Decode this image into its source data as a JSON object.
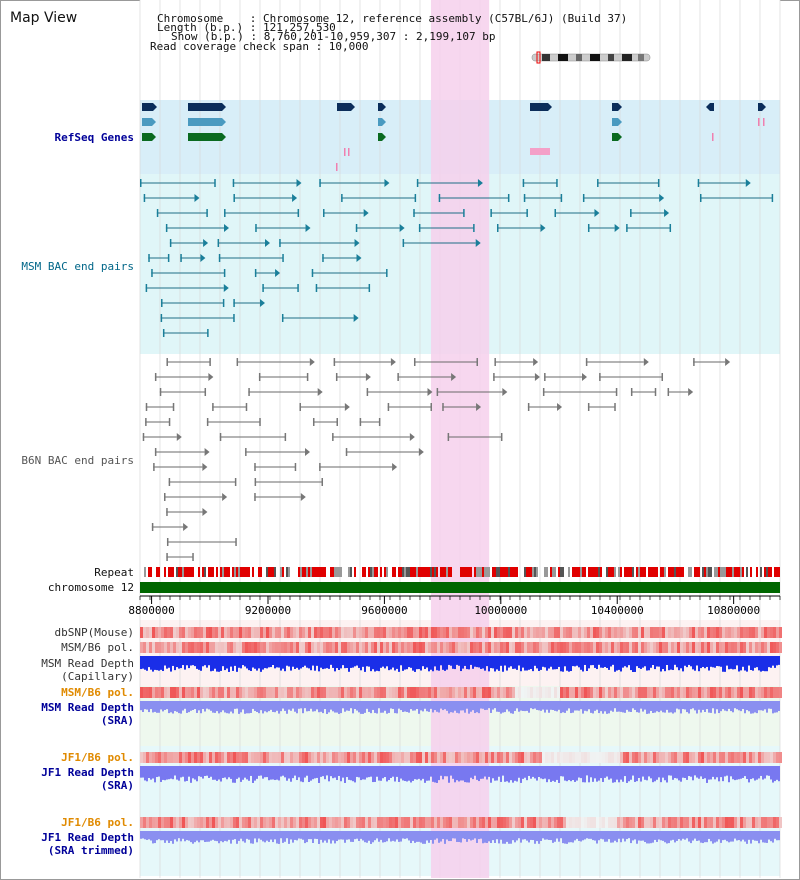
{
  "view_title": "Map View",
  "info": {
    "line1": "Chromosome    : Chromosome 12, reference assembly (C57BL/6J) (Build 37)",
    "line2": "Length (b.p.) : 121,257,530",
    "line3": "Show (b.p.) : 8,760,201-10,959,307 : 2,199,107 bp",
    "line4": "Read coverage check span : 10,000"
  },
  "tracks": {
    "refseq": "RefSeq Genes",
    "msm_bac": "MSM BAC end pairs",
    "b6n_bac": "B6N BAC end pairs",
    "repeat": "Repeat",
    "chrom": "chromosome 12",
    "dbsnp": "dbSNP(Mouse)",
    "msm_pol": "MSM/B6 pol.",
    "msm_depth_cap_1": "MSM Read Depth",
    "msm_depth_cap_2": "(Capillary)",
    "msm_pol_sra": "MSM/B6 pol.",
    "msm_depth_sra_1": "MSM Read Depth",
    "msm_depth_sra_2": "(SRA)",
    "jf1_pol": "JF1/B6 pol.",
    "jf1_depth_1": "JF1 Read Depth",
    "jf1_depth_2": "(SRA)",
    "jf1_pol_t": "JF1/B6 pol.",
    "jf1_depth_t_1": "JF1 Read Depth",
    "jf1_depth_t_2": "(SRA trimmed)"
  },
  "axis": {
    "start": 8760201,
    "end": 10959307,
    "ticks": [
      "8800000",
      "9200000",
      "9600000",
      "10000000",
      "10400000",
      "10800000"
    ]
  },
  "highlight_region": [
    9760000,
    9960000
  ],
  "colors": {
    "refseq_bg": "#d8eef8",
    "msm_bg": "#e0f6f8",
    "b6n_bg": "#ffffff",
    "highlight": "#f6d0ec",
    "chrom_bar": "#006600",
    "blue_label": "#000099",
    "msm_label": "#006688",
    "b6n_label": "#555555",
    "orange_label": "#e08a00"
  }
}
